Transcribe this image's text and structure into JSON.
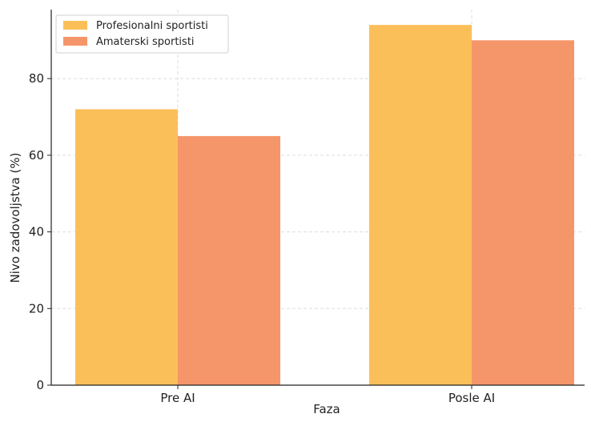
{
  "chart_data": {
    "type": "bar",
    "title": "",
    "xlabel": "Faza",
    "ylabel": "Nivo zadovoljstva (%)",
    "categories": [
      "Pre AI",
      "Posle AI"
    ],
    "series": [
      {
        "name": "Profesionalni sportisti",
        "values": [
          72,
          94
        ],
        "color": "#FBBF5A"
      },
      {
        "name": "Amaterski sportisti",
        "values": [
          65,
          90
        ],
        "color": "#F5966A"
      }
    ],
    "ylim": [
      0,
      98
    ],
    "yticks": [
      0,
      20,
      40,
      60,
      80
    ],
    "grid": true,
    "legend_position": "top-left"
  }
}
